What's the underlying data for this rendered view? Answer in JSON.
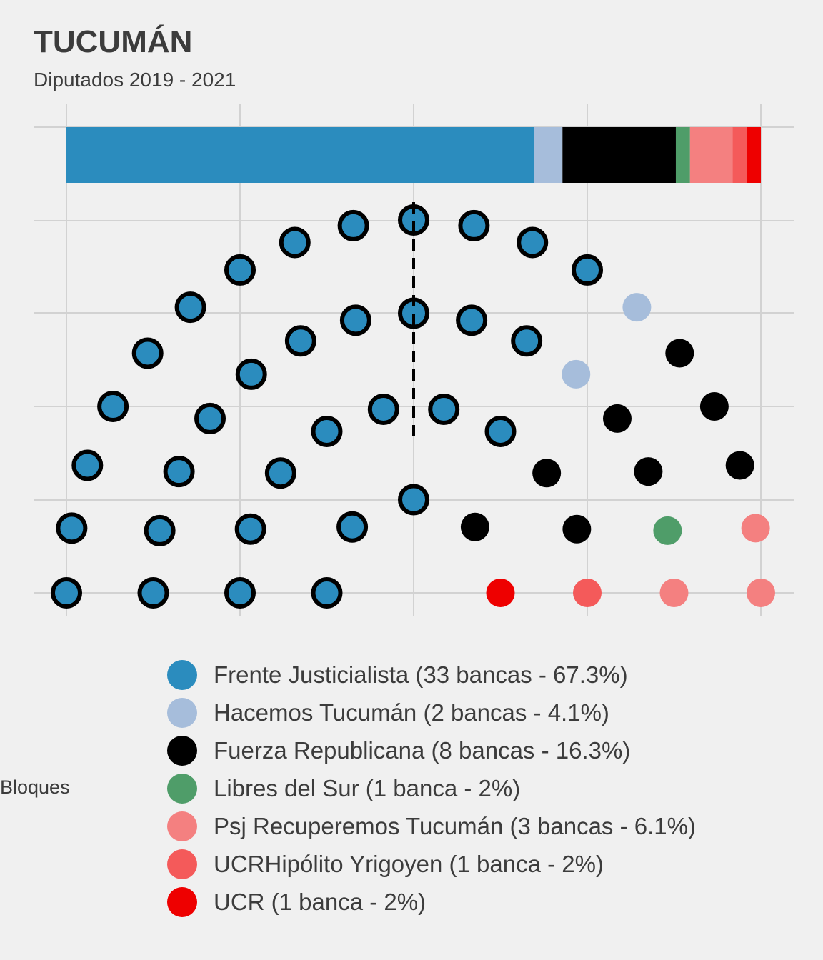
{
  "title": "TUCUMÁN",
  "subtitle": "Diputados 2019 - 2021",
  "legend_title": "Bloques",
  "chart_data": {
    "type": "parliament",
    "total_seats": 49,
    "x_gridlines": [
      -1,
      -0.5,
      0,
      0.5,
      1
    ],
    "grid": true,
    "legend_position": "bottom",
    "series": [
      {
        "name": "Frente Justicialista",
        "label": "Frente Justicialista (33 bancas - 67.3%)",
        "seats": 33,
        "percent": 67.3,
        "color": "#2b8cbe",
        "outlined": true
      },
      {
        "name": "Hacemos Tucumán",
        "label": "Hacemos Tucumán (2 bancas - 4.1%)",
        "seats": 2,
        "percent": 4.1,
        "color": "#a6bddb",
        "outlined": false
      },
      {
        "name": "Fuerza Republicana",
        "label": "Fuerza Republicana (8 bancas - 16.3%)",
        "seats": 8,
        "percent": 16.3,
        "color": "#000000",
        "outlined": false
      },
      {
        "name": "Libres del Sur",
        "label": "Libres del Sur (1 banca - 2%)",
        "seats": 1,
        "percent": 2,
        "color": "#4f9d69",
        "outlined": false
      },
      {
        "name": "Psj Recuperemos Tucumán",
        "label": "Psj Recuperemos Tucumán (3 bancas - 6.1%)",
        "seats": 3,
        "percent": 6.1,
        "color": "#f48080",
        "outlined": false
      },
      {
        "name": "UCRHipólito Yrigoyen",
        "label": "UCRHipólito Yrigoyen (1 banca - 2%)",
        "seats": 1,
        "percent": 2,
        "color": "#f45a5a",
        "outlined": false
      },
      {
        "name": "UCR",
        "label": "UCR (1 banca - 2%)",
        "seats": 1,
        "percent": 2,
        "color": "#ee0000",
        "outlined": false
      }
    ],
    "rows": [
      {
        "radius": 1.0,
        "seats": 19
      },
      {
        "radius": 0.75,
        "seats": 15
      },
      {
        "radius": 0.5,
        "seats": 10
      },
      {
        "radius": 0.25,
        "seats": 5
      }
    ],
    "majority_line": true
  }
}
